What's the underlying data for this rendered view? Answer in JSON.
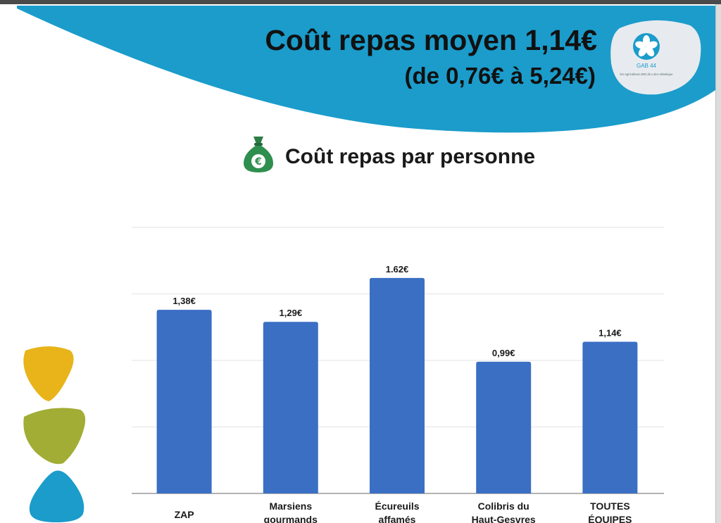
{
  "header": {
    "title": "Coût repas moyen 1,14€",
    "subtitle": "(de 0,76€ à 5,24€)",
    "logo": {
      "name": "GAB 44",
      "tagline": "les Agriculteurs BIO de Loire-Atlantique"
    },
    "banner_color": "#1b9ccb"
  },
  "chart_heading": {
    "icon": "money-bag-euro-icon",
    "text": "Coût repas par personne"
  },
  "chart_data": {
    "type": "bar",
    "title": "Coût repas par personne",
    "categories": [
      [
        "ZAP"
      ],
      [
        "Marsiens",
        "gourmands"
      ],
      [
        "Écureuils",
        "affamés"
      ],
      [
        "Colibris du",
        "Haut-Gesvres"
      ],
      [
        "TOUTES",
        "ÉQUIPES"
      ]
    ],
    "values": [
      1.38,
      1.29,
      1.62,
      0.99,
      1.14
    ],
    "data_labels": [
      "1,38€",
      "1,29€",
      "1.62€",
      "0,99€",
      "1,14€"
    ],
    "ylim": [
      0,
      2.0
    ],
    "grid": true,
    "bar_color": "#3b6fc4",
    "grid_color": "#e3e3e3",
    "legend": "none"
  },
  "decor": {
    "blob_colors": [
      "#e8b41a",
      "#a2ad35",
      "#1b9ccb"
    ]
  }
}
